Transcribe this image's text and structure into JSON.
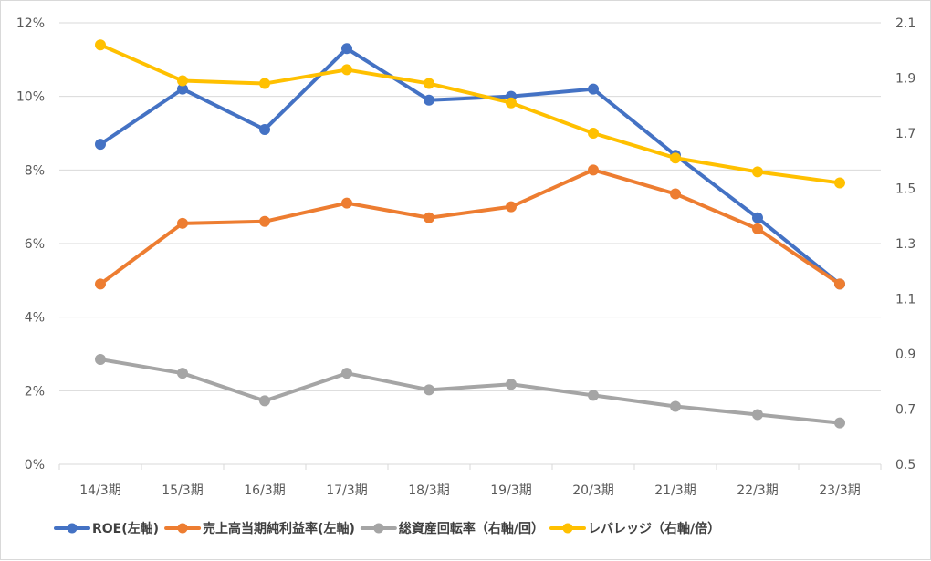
{
  "chart_data": {
    "type": "line",
    "categories": [
      "14/3期",
      "15/3期",
      "16/3期",
      "17/3期",
      "18/3期",
      "19/3期",
      "20/3期",
      "21/3期",
      "22/3期",
      "23/3期"
    ],
    "left_axis": {
      "range": [
        0,
        12
      ],
      "ticks": [
        0,
        2,
        4,
        6,
        8,
        10,
        12
      ],
      "tick_labels": [
        "0%",
        "2%",
        "4%",
        "6%",
        "8%",
        "10%",
        "12%"
      ]
    },
    "right_axis": {
      "range": [
        0.5,
        2.1
      ],
      "ticks": [
        0.5,
        0.7,
        0.9,
        1.1,
        1.3,
        1.5,
        1.7,
        1.9,
        2.1
      ],
      "tick_labels": [
        "0.5",
        "0.7",
        "0.9",
        "1.1",
        "1.3",
        "1.5",
        "1.7",
        "1.9",
        "2.1"
      ]
    },
    "grid": true,
    "legend_position": "bottom",
    "series": [
      {
        "name": "ROE(左軸)",
        "axis": "left",
        "color": "#4472C4",
        "values": [
          8.7,
          10.2,
          9.1,
          11.3,
          9.9,
          10.0,
          10.2,
          8.4,
          6.7,
          4.9
        ]
      },
      {
        "name": "売上高当期純利益率(左軸)",
        "axis": "left",
        "color": "#ED7D31",
        "values": [
          4.9,
          6.55,
          6.6,
          7.1,
          6.7,
          7.0,
          8.0,
          7.35,
          6.4,
          4.9
        ]
      },
      {
        "name": "総資産回転率（右軸/回）",
        "axis": "right",
        "color": "#A5A5A5",
        "values": [
          0.88,
          0.83,
          0.73,
          0.83,
          0.77,
          0.79,
          0.75,
          0.71,
          0.68,
          0.65
        ]
      },
      {
        "name": "レバレッジ（右軸/倍）",
        "axis": "right",
        "color": "#FFC000",
        "values": [
          2.02,
          1.89,
          1.88,
          1.93,
          1.88,
          1.81,
          1.7,
          1.61,
          1.56,
          1.52
        ]
      }
    ]
  }
}
